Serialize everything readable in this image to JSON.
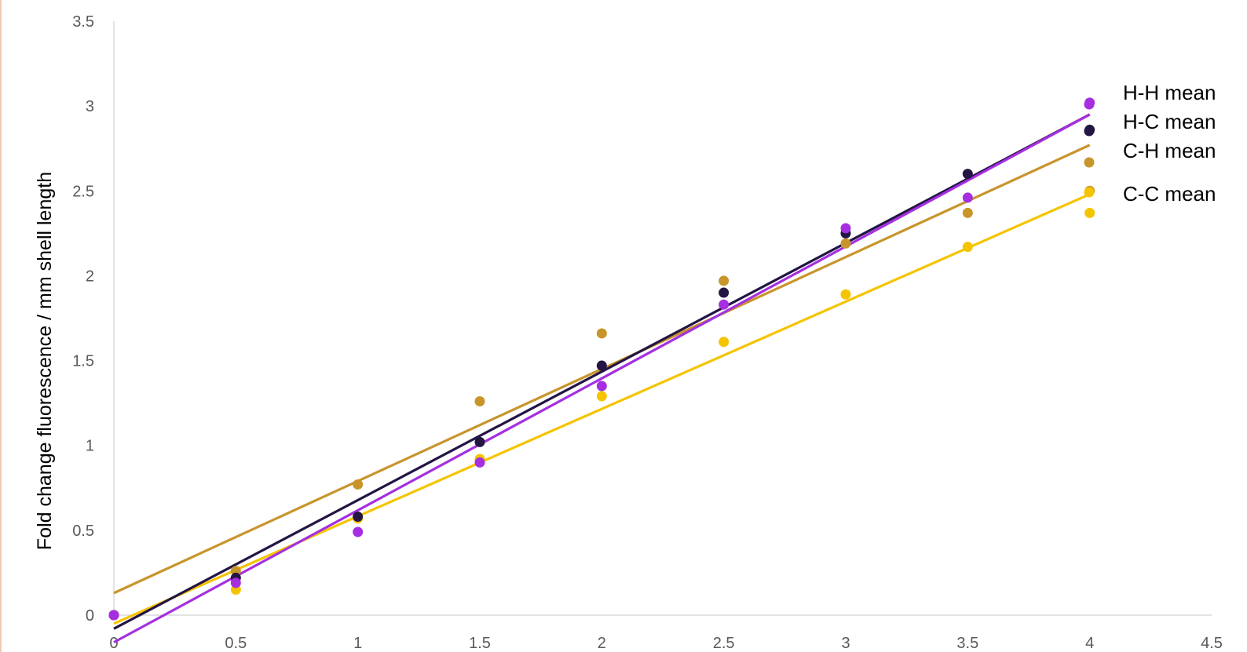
{
  "chart_data": {
    "type": "scatter",
    "ylabel": "Fold change fluorescence / mm shell length",
    "xlabel": "",
    "xlim": [
      0,
      4.5
    ],
    "ylim": [
      0,
      3.5
    ],
    "x_ticks": [
      "0",
      "0.5",
      "1",
      "1.5",
      "2",
      "2.5",
      "3",
      "3.5",
      "4",
      "4.5"
    ],
    "y_ticks": [
      "0",
      "0.5",
      "1",
      "1.5",
      "2",
      "2.5",
      "3",
      "3.5"
    ],
    "x_tick_values": [
      0,
      0.5,
      1,
      1.5,
      2,
      2.5,
      3,
      3.5,
      4,
      4.5
    ],
    "y_tick_values": [
      0,
      0.5,
      1,
      1.5,
      2,
      2.5,
      3,
      3.5
    ],
    "grid": false,
    "legend_position": "right",
    "series": [
      {
        "name": "H-H mean",
        "color": "#a52fe0",
        "x": [
          0,
          0.5,
          1,
          1.5,
          2,
          2.5,
          3,
          3.5,
          4
        ],
        "y": [
          0,
          0.19,
          0.49,
          0.9,
          1.35,
          1.83,
          2.28,
          2.46,
          3.02
        ],
        "trendline": [
          [
            0,
            -0.16
          ],
          [
            4,
            2.95
          ]
        ]
      },
      {
        "name": "H-C mean",
        "color": "#231544",
        "x": [
          0,
          0.5,
          1,
          1.5,
          2,
          2.5,
          3,
          3.5,
          4
        ],
        "y": [
          0,
          0.22,
          0.58,
          1.02,
          1.47,
          1.9,
          2.25,
          2.6,
          2.86
        ],
        "trendline": [
          [
            0,
            -0.08
          ],
          [
            4,
            2.95
          ]
        ]
      },
      {
        "name": "C-H mean",
        "color": "#c8952b",
        "x": [
          0,
          0.5,
          1,
          1.5,
          2,
          2.5,
          3,
          3.5,
          4
        ],
        "y": [
          0,
          0.26,
          0.77,
          1.26,
          1.66,
          1.97,
          2.19,
          2.37,
          2.5
        ],
        "trendline": [
          [
            0,
            0.13
          ],
          [
            4,
            2.77
          ]
        ]
      },
      {
        "name": "C-C mean",
        "color": "#f5c400",
        "x": [
          0,
          0.5,
          1,
          1.5,
          2,
          2.5,
          3,
          3.5,
          4
        ],
        "y": [
          0,
          0.15,
          0.57,
          0.92,
          1.29,
          1.61,
          1.89,
          2.17,
          2.37
        ],
        "trendline": [
          [
            0,
            -0.05
          ],
          [
            4,
            2.48
          ]
        ]
      }
    ]
  }
}
